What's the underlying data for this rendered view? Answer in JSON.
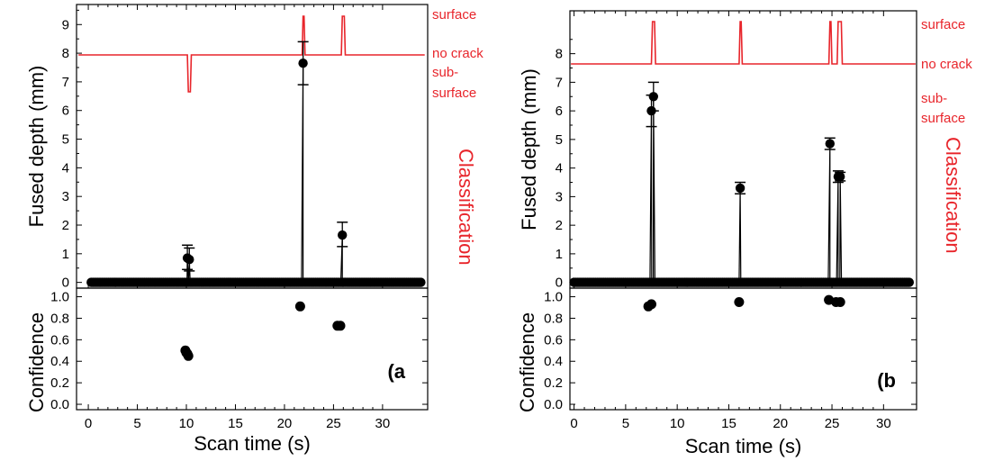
{
  "colors": {
    "data": "#000000",
    "classification": "#e8252b",
    "frame": "#000000"
  },
  "chart_data": [
    {
      "type": "scatter",
      "panel_label": "(a",
      "xlabel": "Scan time (s)",
      "x_ticks": [
        "0",
        "5",
        "10",
        "15",
        "20",
        "25",
        "30"
      ],
      "xlim": [
        -1.2,
        34.6
      ],
      "top": {
        "ylabel": "Fused depth (mm)",
        "ylim": [
          -0.2,
          9.7
        ],
        "y_ticks": [
          "0",
          "1",
          "2",
          "3",
          "4",
          "5",
          "6",
          "7",
          "8",
          "9"
        ],
        "baseline": {
          "x_start": 0.3,
          "x_end": 33.9,
          "step": 0.16,
          "value": 0
        },
        "spikes": [
          {
            "x": 10.1,
            "value": 0.85,
            "err_low": 0.45,
            "err_high": 1.3
          },
          {
            "x": 10.3,
            "value": 0.8,
            "err_low": 0.4,
            "err_high": 1.2
          },
          {
            "x": 21.9,
            "value": 7.65,
            "err_low": 6.9,
            "err_high": 8.4
          },
          {
            "x": 25.9,
            "value": 1.65,
            "err_low": 1.25,
            "err_high": 2.1
          }
        ]
      },
      "classification": {
        "label": "Classification",
        "levels": [
          "surface",
          "no crack",
          "sub-surface"
        ],
        "level_lines": [
          "surface",
          "no crack",
          "sub-",
          "surface"
        ],
        "x": [
          -1.0,
          10.1,
          10.2,
          10.4,
          10.5,
          21.8,
          21.9,
          22.0,
          22.1,
          25.8,
          25.9,
          26.1,
          26.2,
          34.3
        ],
        "y": [
          "no crack",
          "no crack",
          "sub-surface",
          "sub-surface",
          "no crack",
          "no crack",
          "surface",
          "surface",
          "no crack",
          "no crack",
          "surface",
          "surface",
          "no crack",
          "no crack"
        ]
      },
      "bottom": {
        "ylabel": "Confidence",
        "ylim": [
          -0.05,
          1.08
        ],
        "y_ticks": [
          "0.0",
          "0.2",
          "0.4",
          "0.6",
          "0.8",
          "1.0"
        ],
        "points": [
          {
            "x": 9.9,
            "y": 0.5
          },
          {
            "x": 10.0,
            "y": 0.48
          },
          {
            "x": 10.1,
            "y": 0.47
          },
          {
            "x": 10.2,
            "y": 0.45
          },
          {
            "x": 21.6,
            "y": 0.91
          },
          {
            "x": 25.4,
            "y": 0.73
          },
          {
            "x": 25.7,
            "y": 0.73
          }
        ]
      }
    },
    {
      "type": "scatter",
      "panel_label": "(b",
      "xlabel": "Scan time (s)",
      "x_ticks": [
        "0",
        "5",
        "10",
        "15",
        "20",
        "25",
        "30"
      ],
      "xlim": [
        -0.4,
        33.2
      ],
      "top": {
        "ylabel": "Fused depth (mm)",
        "ylim": [
          -0.2,
          9.5
        ],
        "y_ticks": [
          "0",
          "1",
          "2",
          "3",
          "4",
          "5",
          "6",
          "7",
          "8"
        ],
        "baseline": {
          "x_start": 0.0,
          "x_end": 32.5,
          "step": 0.16,
          "value": 0
        },
        "spikes": [
          {
            "x": 7.5,
            "value": 6.0,
            "err_low": 5.45,
            "err_high": 6.55
          },
          {
            "x": 7.7,
            "value": 6.5,
            "err_low": 6.0,
            "err_high": 7.0
          },
          {
            "x": 16.1,
            "value": 3.3,
            "err_low": 3.1,
            "err_high": 3.5
          },
          {
            "x": 24.8,
            "value": 4.85,
            "err_low": 4.65,
            "err_high": 5.05
          },
          {
            "x": 25.6,
            "value": 3.7,
            "err_low": 3.5,
            "err_high": 3.9
          },
          {
            "x": 25.8,
            "value": 3.7,
            "err_low": 3.55,
            "err_high": 3.85
          }
        ]
      },
      "classification": {
        "label": "Classification",
        "levels": [
          "surface",
          "no crack",
          "sub-surface"
        ],
        "level_lines": [
          "surface",
          "no crack",
          "sub-",
          "surface"
        ],
        "x": [
          -0.3,
          7.5,
          7.6,
          7.8,
          7.9,
          16.0,
          16.1,
          16.2,
          16.3,
          24.7,
          24.8,
          24.9,
          25.0,
          25.5,
          25.6,
          25.9,
          26.0,
          33.1
        ],
        "y": [
          "no crack",
          "no crack",
          "surface",
          "surface",
          "no crack",
          "no crack",
          "surface",
          "surface",
          "no crack",
          "no crack",
          "surface",
          "surface",
          "no crack",
          "no crack",
          "surface",
          "surface",
          "no crack",
          "no crack"
        ]
      },
      "bottom": {
        "ylabel": "Confidence",
        "ylim": [
          -0.05,
          1.08
        ],
        "y_ticks": [
          "0.0",
          "0.2",
          "0.4",
          "0.6",
          "0.8",
          "1.0"
        ],
        "points": [
          {
            "x": 7.2,
            "y": 0.91
          },
          {
            "x": 7.5,
            "y": 0.93
          },
          {
            "x": 16.0,
            "y": 0.95
          },
          {
            "x": 24.7,
            "y": 0.97
          },
          {
            "x": 25.4,
            "y": 0.95
          },
          {
            "x": 25.8,
            "y": 0.95
          }
        ]
      }
    }
  ]
}
